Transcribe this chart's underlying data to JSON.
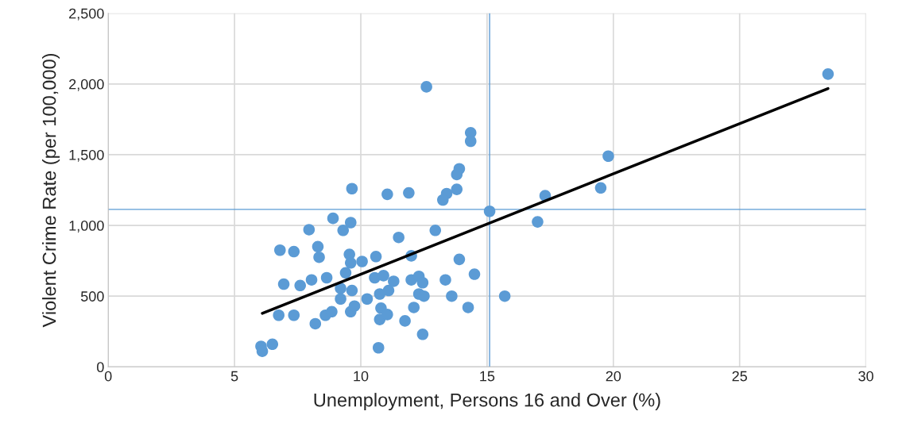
{
  "chart_data": {
    "type": "scatter",
    "xlabel": "Unemployment, Persons 16 and Over (%)",
    "ylabel": "Violent Crime Rate (per 100,000)",
    "xlim": [
      0,
      30
    ],
    "xticks": [
      0,
      5,
      10,
      15,
      20,
      25,
      30
    ],
    "ylim": [
      0,
      2500
    ],
    "yticks": [
      0,
      500,
      {
        "value": 1000,
        "label": "1,000"
      },
      {
        "value": 1500,
        "label": "1,500"
      },
      {
        "value": 2000,
        "label": "2,000"
      },
      {
        "value": 2500,
        "label": "2,500"
      }
    ],
    "grid": true,
    "marker": "circle",
    "series": [
      {
        "color": "#5b9bd5",
        "x": [
          28.5,
          19.8,
          19.5,
          17.3,
          17.0,
          15.1,
          15.7,
          14.35,
          14.35,
          13.9,
          13.8,
          13.8,
          13.4,
          13.25,
          12.6,
          11.9,
          11.05,
          9.65,
          8.9,
          9.6,
          9.3,
          7.95,
          12.95,
          11.5,
          6.8,
          7.35,
          8.3,
          8.35,
          9.55,
          10.6,
          12.0,
          9.6,
          10.05,
          13.9,
          9.4,
          14.5,
          6.95,
          7.6,
          8.05,
          8.65,
          9.2,
          9.65,
          10.55,
          10.9,
          11.3,
          12.0,
          12.3,
          12.45,
          11.1,
          10.75,
          12.3,
          12.5,
          13.35,
          13.6,
          9.2,
          10.25,
          6.75,
          7.35,
          8.2,
          8.6,
          8.85,
          9.6,
          9.75,
          10.8,
          10.75,
          11.05,
          12.1,
          11.75,
          14.25,
          12.45,
          10.7,
          6.05,
          6.1,
          6.5
        ],
        "values": [
          2070,
          1490,
          1265,
          1210,
          1025,
          1100,
          500,
          1655,
          1595,
          1400,
          1360,
          1255,
          1225,
          1180,
          1980,
          1230,
          1220,
          1260,
          1050,
          1020,
          965,
          970,
          965,
          915,
          825,
          815,
          850,
          775,
          795,
          780,
          785,
          735,
          745,
          760,
          665,
          655,
          585,
          575,
          615,
          630,
          555,
          540,
          630,
          645,
          605,
          615,
          640,
          595,
          540,
          515,
          515,
          500,
          615,
          500,
          480,
          480,
          365,
          365,
          305,
          365,
          390,
          390,
          430,
          415,
          335,
          370,
          420,
          325,
          420,
          230,
          135,
          145,
          110,
          160
        ]
      },
      {
        "type": "line",
        "color": "#000000",
        "marker": "none",
        "line_style": "solid",
        "x": [
          6.1,
          28.5
        ],
        "values": [
          378,
          1968
        ]
      }
    ],
    "ref_lines": [
      {
        "axis": "x",
        "value": 15.1,
        "color": "#5b9bd5"
      },
      {
        "axis": "y",
        "value": 1113,
        "color": "#5b9bd5"
      }
    ]
  }
}
